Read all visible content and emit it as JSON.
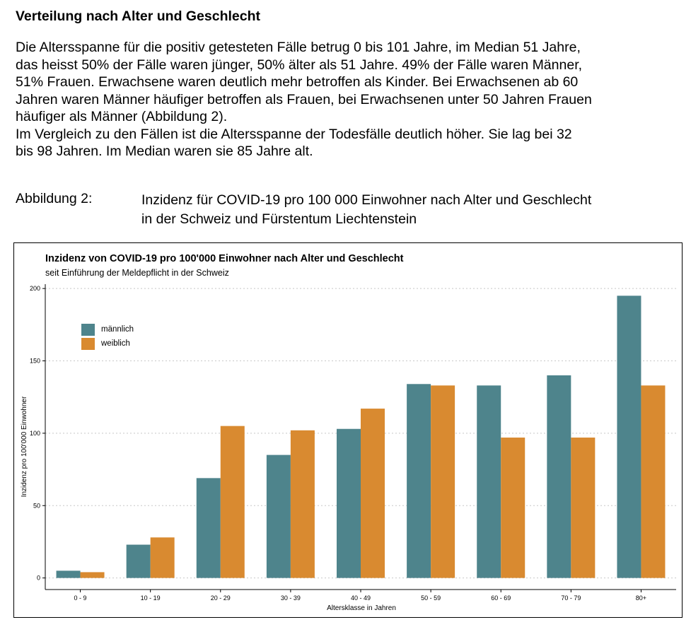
{
  "heading": "Verteilung nach Alter und Geschlecht",
  "paragraph": {
    "lines": [
      "Die Altersspanne für die positiv getesteten Fälle betrug 0 bis 101 Jahre, im Median 51 Jahre,",
      "das heisst 50% der Fälle waren jünger, 50% älter als 51 Jahre. 49% der Fälle waren Männer,",
      "51% Frauen. Erwachsene waren deutlich mehr betroffen als Kinder. Bei Erwachsenen ab 60",
      "Jahren waren Männer häufiger betroffen als Frauen, bei Erwachsenen unter 50 Jahren Frauen",
      "häufiger als Männer (Abbildung 2).",
      "Im Vergleich zu den Fällen ist die Altersspanne der Todesfälle deutlich höher. Sie lag bei 32",
      "bis 98 Jahren. Im Median waren sie 85 Jahre alt."
    ]
  },
  "figure": {
    "label": "Abbildung 2:",
    "caption_line1": "Inzidenz für COVID-19 pro 100 000 Einwohner nach Alter und Geschlecht",
    "caption_line2": "in der Schweiz und Fürstentum Liechtenstein"
  },
  "chart_data": {
    "type": "bar",
    "title": "Inzidenz von COVID-19 pro 100'000 Einwohner nach Alter und Geschlecht",
    "subtitle": "seit Einführung der Meldepflicht in der Schweiz",
    "xlabel": "Altersklasse in Jahren",
    "ylabel": "Inzidenz pro 100'000 Einwohner",
    "categories": [
      "0 - 9",
      "10 - 19",
      "20 - 29",
      "30 - 39",
      "40 - 49",
      "50 - 59",
      "60 - 69",
      "70 - 79",
      "80+"
    ],
    "series": [
      {
        "name": "männlich",
        "color": "#4e848c",
        "values": [
          5,
          23,
          69,
          85,
          103,
          134,
          133,
          140,
          195
        ]
      },
      {
        "name": "weiblich",
        "color": "#d98a30",
        "values": [
          4,
          28,
          105,
          102,
          117,
          133,
          97,
          97,
          133
        ]
      }
    ],
    "ylim": [
      -8,
      203
    ],
    "yticks": [
      0,
      50,
      100,
      150,
      200
    ],
    "grid": true,
    "legend_position": "top-left"
  }
}
